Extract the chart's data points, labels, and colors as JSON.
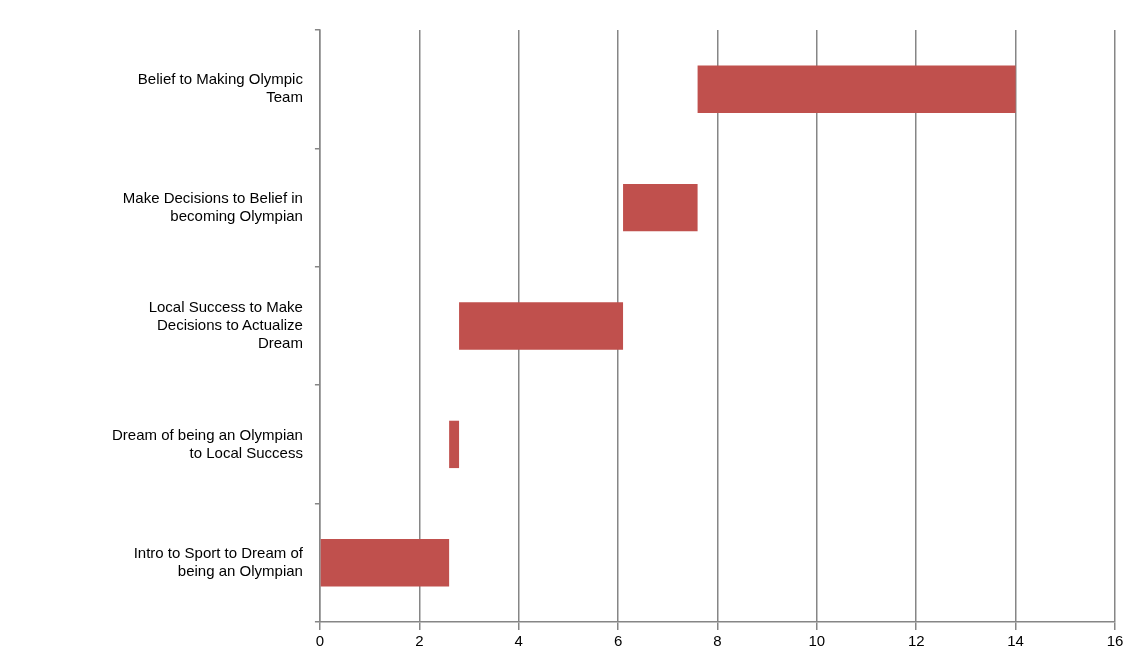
{
  "chart_data": {
    "type": "bar",
    "orientation": "horizontal",
    "categories": [
      "Belief to Making Olympic Team",
      "Make Decisions to Belief in becoming Olympian",
      "Local Success to Make Decisions to Actualize Dream",
      "Dream of being an Olympian to Local Success",
      "Intro to Sport to Dream of being an Olympian"
    ],
    "values": [
      6.4,
      1.5,
      3.3,
      0.2,
      2.6
    ],
    "base": [
      7.6,
      6.1,
      2.8,
      2.6,
      0
    ],
    "color": "#c0504d",
    "xlim": [
      0,
      16
    ],
    "xticks": [
      0,
      2,
      4,
      6,
      8,
      10,
      12,
      14,
      16
    ],
    "grid": "x",
    "legend": false
  }
}
